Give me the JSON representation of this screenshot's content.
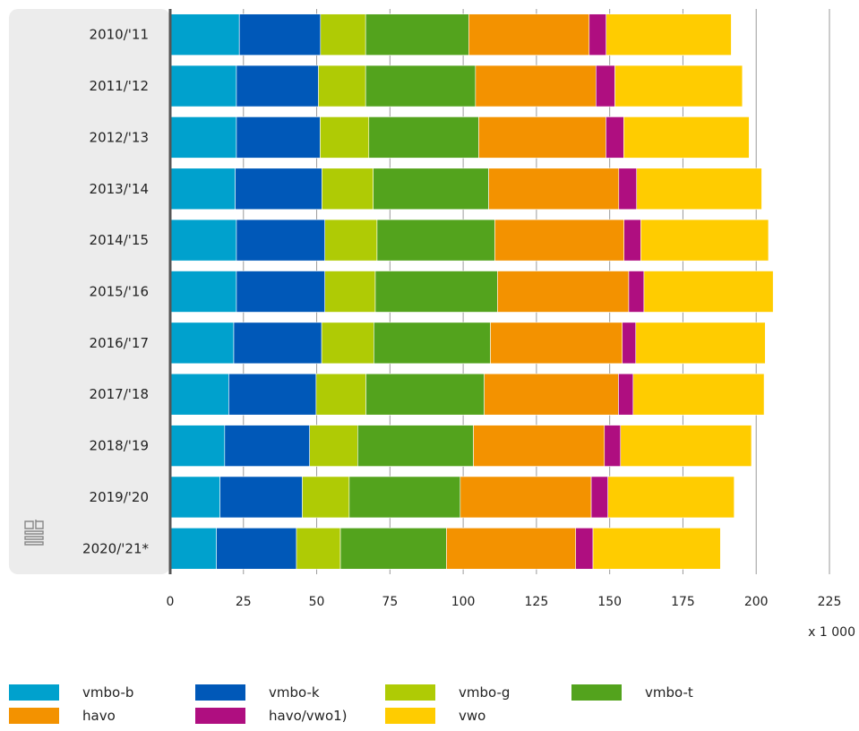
{
  "chart_data": {
    "type": "bar",
    "orientation": "horizontal",
    "stacked": true,
    "unit_label": "x 1 000",
    "categories": [
      "2010/'11",
      "2011/'12",
      "2012/'13",
      "2013/'14",
      "2014/'15",
      "2015/'16",
      "2016/'17",
      "2017/'18",
      "2018/'19",
      "2019/'20",
      "2020/'21*"
    ],
    "xlim": [
      0,
      225
    ],
    "xticks": [
      0,
      25,
      50,
      75,
      100,
      125,
      150,
      175,
      200,
      225
    ],
    "grid": true,
    "legend_position": "bottom",
    "series": [
      {
        "name": "vmbo-b",
        "color": "#00a1cd",
        "values": [
          23.6,
          22.6,
          22.6,
          22.2,
          22.6,
          22.6,
          21.7,
          20.0,
          18.6,
          17.0,
          15.8
        ]
      },
      {
        "name": "vmbo-k",
        "color": "#0058b8",
        "values": [
          27.7,
          28.0,
          28.6,
          29.6,
          30.2,
          30.2,
          30.0,
          29.8,
          29.0,
          28.1,
          27.3
        ]
      },
      {
        "name": "vmbo-g",
        "color": "#afcb05",
        "values": [
          15.4,
          16.1,
          16.6,
          17.5,
          17.8,
          17.2,
          17.8,
          17.0,
          16.4,
          16.0,
          15.0
        ]
      },
      {
        "name": "vmbo-t",
        "color": "#53a31d",
        "values": [
          35.2,
          37.5,
          37.5,
          39.4,
          40.2,
          41.7,
          39.8,
          40.4,
          39.5,
          37.9,
          36.2
        ]
      },
      {
        "name": "havo",
        "color": "#f39200",
        "values": [
          41.1,
          41.1,
          43.4,
          44.4,
          44.1,
          44.8,
          45.0,
          45.8,
          44.7,
          44.7,
          44.1
        ]
      },
      {
        "name": "havo/vwo1)",
        "color": "#af0e80",
        "values": [
          5.8,
          6.5,
          6.1,
          6.1,
          5.7,
          5.2,
          4.6,
          5.0,
          5.5,
          5.7,
          5.9
        ]
      },
      {
        "name": "vwo",
        "color": "#ffcc00",
        "values": [
          42.7,
          43.5,
          42.8,
          42.7,
          43.6,
          44.1,
          44.2,
          44.7,
          44.7,
          43.1,
          43.5
        ]
      }
    ]
  }
}
